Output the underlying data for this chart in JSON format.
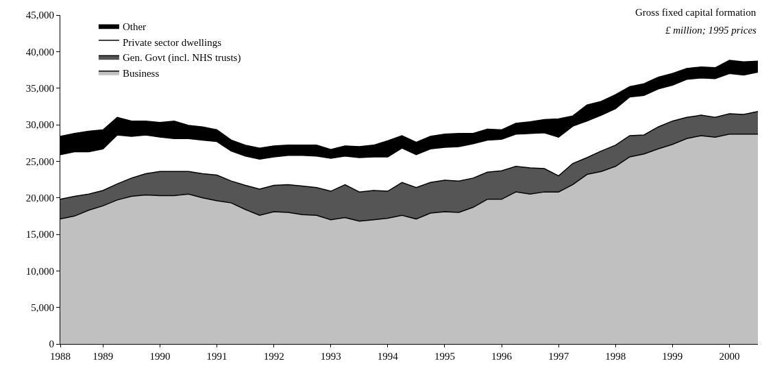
{
  "chart_data": {
    "type": "area",
    "stacked": true,
    "title": "Gross fixed capital formation",
    "subtitle": "£ million; 1995 prices",
    "categories": [
      "1988",
      null,
      null,
      "1989",
      null,
      null,
      null,
      "1990",
      null,
      null,
      null,
      "1991",
      null,
      null,
      null,
      "1992",
      null,
      null,
      null,
      "1993",
      null,
      null,
      null,
      "1994",
      null,
      null,
      null,
      "1995",
      null,
      null,
      null,
      "1996",
      null,
      null,
      null,
      "1997",
      null,
      null,
      null,
      "1998",
      null,
      null,
      null,
      "1999",
      null,
      null,
      null,
      "2000",
      null,
      null
    ],
    "series": [
      {
        "name": "Business",
        "color": "#c0c0c0",
        "values": [
          17100,
          17500,
          18300,
          18900,
          19700,
          20200,
          20400,
          20300,
          20300,
          20500,
          20000,
          19600,
          19300,
          18400,
          17600,
          18100,
          18000,
          17700,
          17600,
          17000,
          17300,
          16800,
          17000,
          17200,
          17600,
          17100,
          17900,
          18100,
          18000,
          18700,
          19800,
          19800,
          20800,
          20500,
          20800,
          20800,
          21800,
          23200,
          23600,
          24300,
          25600,
          26000,
          26700,
          27300,
          28100,
          28500,
          28300,
          28700,
          28700,
          28700
        ]
      },
      {
        "name": "Gen. Govt (incl. NHS trusts)",
        "color": "#555555",
        "values": [
          2700,
          2700,
          2200,
          2100,
          2200,
          2500,
          2900,
          3300,
          3300,
          3100,
          3300,
          3500,
          3000,
          3300,
          3600,
          3600,
          3800,
          3900,
          3800,
          3900,
          4500,
          4000,
          4000,
          3700,
          4500,
          4300,
          4200,
          4300,
          4300,
          4000,
          3700,
          3900,
          3500,
          3600,
          3200,
          2200,
          2900,
          2300,
          2800,
          2900,
          2900,
          2600,
          3000,
          3200,
          2900,
          2800,
          2700,
          2800,
          2700,
          3100
        ]
      },
      {
        "name": "Private sector dwellings",
        "color": "#ffffff",
        "values": [
          6100,
          6100,
          5800,
          5700,
          6700,
          5700,
          5300,
          4700,
          4500,
          4500,
          4600,
          4600,
          4100,
          4000,
          4100,
          3900,
          4000,
          4200,
          4300,
          4500,
          3900,
          4700,
          4600,
          4700,
          4700,
          4500,
          4600,
          4500,
          4700,
          4700,
          4400,
          4300,
          4400,
          4700,
          4900,
          5300,
          5100,
          5000,
          4900,
          5000,
          5300,
          5400,
          5200,
          4900,
          5200,
          5100,
          5300,
          5500,
          5400,
          5400
        ]
      },
      {
        "name": "Other",
        "color": "#000000",
        "values": [
          2500,
          2500,
          2800,
          2600,
          2400,
          2100,
          1900,
          2000,
          2400,
          1800,
          1800,
          1600,
          1500,
          1500,
          1500,
          1500,
          1400,
          1400,
          1500,
          1200,
          1400,
          1500,
          1600,
          2200,
          1700,
          1700,
          1700,
          1800,
          1800,
          1400,
          1500,
          1300,
          1500,
          1600,
          1800,
          2500,
          1400,
          2200,
          1900,
          1900,
          1400,
          1600,
          1600,
          1600,
          1500,
          1500,
          1500,
          1800,
          1800,
          1500
        ]
      }
    ],
    "ylim": [
      0,
      45000
    ],
    "yticks": [
      {
        "value": 0,
        "label": "0"
      },
      {
        "value": 5000,
        "label": "5,000"
      },
      {
        "value": 10000,
        "label": "10,000"
      },
      {
        "value": 15000,
        "label": "15,000"
      },
      {
        "value": 20000,
        "label": "20,000"
      },
      {
        "value": 25000,
        "label": "25,000"
      },
      {
        "value": 30000,
        "label": "30,000"
      },
      {
        "value": 35000,
        "label": "35,000"
      },
      {
        "value": 40000,
        "label": "40,000"
      },
      {
        "value": 45000,
        "label": "45,000"
      }
    ],
    "legend": "top left"
  }
}
